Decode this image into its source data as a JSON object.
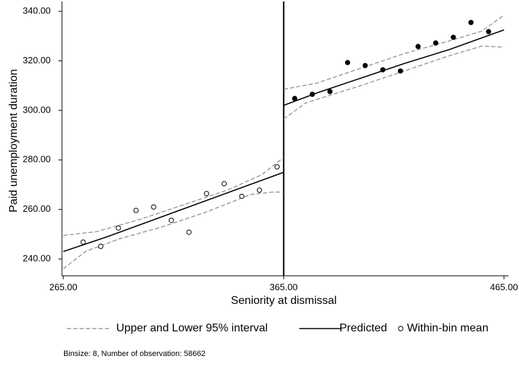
{
  "chart_data": {
    "type": "rd-scatter-line",
    "xlabel": "Seniority at dismissal",
    "ylabel": "Paid unemployment duration",
    "note": "Binsize: 8, Number of observation: 58662",
    "xlim": [
      264.4,
      467
    ],
    "ylim": [
      233.2,
      344
    ],
    "xticks": [
      {
        "value": 265,
        "label": "265.00"
      },
      {
        "value": 365,
        "label": "365.00"
      },
      {
        "value": 465,
        "label": "465.00"
      }
    ],
    "yticks": [
      {
        "value": 240,
        "label": "240.00"
      },
      {
        "value": 260,
        "label": "260.00"
      },
      {
        "value": 280,
        "label": "280.00"
      },
      {
        "value": 300,
        "label": "300.00"
      },
      {
        "value": 320,
        "label": "320.00"
      },
      {
        "value": 340,
        "label": "340.00"
      }
    ],
    "cutoff": 365,
    "series": [
      {
        "name": "Upper and Lower 95% interval",
        "color": "#888888",
        "style": "dashed",
        "segments": [
          {
            "x": [
              265,
              280,
              300,
              320,
              340,
              355,
              365
            ],
            "values": [
              249.5,
              251,
              256,
              262,
              268,
              274,
              281
            ]
          },
          {
            "x": [
              265,
              275,
              290,
              310,
              330,
              350,
              360,
              365
            ],
            "values": [
              236,
              243,
              248,
              253,
              259,
              266,
              267,
              267
            ]
          },
          {
            "x": [
              365,
              380,
              400,
              420,
              440,
              455,
              465
            ],
            "values": [
              308.5,
              311,
              317,
              323,
              328,
              332,
              338.5
            ]
          },
          {
            "x": [
              365,
              375,
              400,
              420,
              440,
              455,
              465
            ],
            "values": [
              296.5,
              303,
              310,
              316,
              322,
              326,
              325.5
            ]
          }
        ]
      },
      {
        "name": "Predicted",
        "color": "#000000",
        "style": "solid",
        "segments": [
          {
            "x": [
              265,
              285,
              305,
              325,
              345,
              365
            ],
            "values": [
              243,
              249,
              255.5,
              262,
              268.5,
              275
            ]
          },
          {
            "x": [
              365,
              380,
              400,
              420,
              440,
              465
            ],
            "values": [
              302,
              307,
              313,
              319,
              324.5,
              332.5
            ]
          }
        ]
      },
      {
        "name": "Within-bin mean",
        "color": "#000000",
        "style": "marker",
        "segments": [
          {
            "fill": "none",
            "x": [
              274,
              282,
              290,
              298,
              306,
              314,
              322,
              330,
              338,
              346,
              354,
              362
            ],
            "values": [
              246.8,
              245.1,
              252.5,
              259.6,
              261,
              255.6,
              250.8,
              266.4,
              270.4,
              265.3,
              267.8,
              277.2
            ]
          },
          {
            "fill": "#000000",
            "x": [
              370,
              378,
              386,
              394,
              402,
              410,
              418,
              426,
              434,
              442,
              450,
              458
            ],
            "values": [
              304.8,
              306.5,
              307.6,
              319.3,
              318.1,
              316.4,
              315.9,
              325.8,
              327.2,
              329.5,
              335.5,
              331.8
            ]
          }
        ]
      }
    ]
  }
}
